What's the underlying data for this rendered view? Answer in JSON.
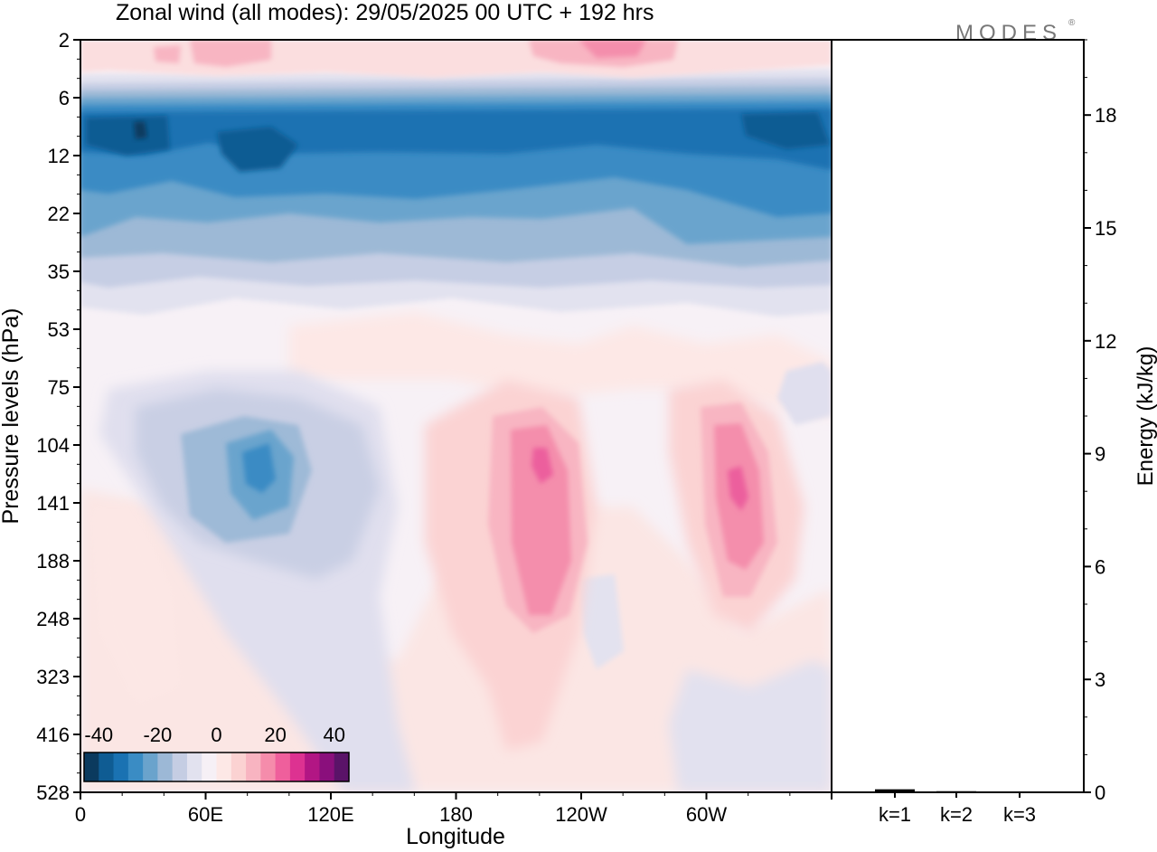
{
  "header": {
    "title": "Zonal wind (all modes):  29/05/2025  00 UTC  + 192 hrs",
    "logo_text": "MODES"
  },
  "chart_data": [
    {
      "type": "heatmap",
      "title": "Zonal wind (all modes):  29/05/2025  00 UTC  + 192 hrs",
      "xlabel": "Longitude",
      "ylabel": "Pressure levels (hPa)",
      "x_ticks": [
        {
          "lon": 0,
          "label": "0"
        },
        {
          "lon": 60,
          "label": "60E"
        },
        {
          "lon": 120,
          "label": "120E"
        },
        {
          "lon": 180,
          "label": "180"
        },
        {
          "lon": 240,
          "label": "120W"
        },
        {
          "lon": 300,
          "label": "60W"
        }
      ],
      "xlim": [
        0,
        360
      ],
      "y_levels": [
        "2",
        "6",
        "12",
        "22",
        "35",
        "53",
        "75",
        "104",
        "141",
        "188",
        "248",
        "323",
        "416",
        "528"
      ],
      "y_scale": "pressure levels, equally spaced, 2 hPa at top",
      "colorbar": {
        "tick_labels": [
          "-40",
          "-20",
          "0",
          "20",
          "40"
        ],
        "tick_values": [
          -40,
          -20,
          0,
          20,
          40
        ],
        "bins": [
          -45,
          -40,
          -35,
          -30,
          -25,
          -20,
          -15,
          -10,
          -5,
          0,
          5,
          10,
          15,
          20,
          25,
          30,
          35,
          40,
          45
        ],
        "colors": [
          "#0b3a5e",
          "#0f5c93",
          "#1a72b2",
          "#3a8cc4",
          "#6aa3cc",
          "#9cb8d6",
          "#c5cde3",
          "#e2e2ef",
          "#f6f0f6",
          "#fde8e6",
          "#fbd2d2",
          "#f8b4c1",
          "#f58cab",
          "#ef5f9c",
          "#dd3291",
          "#b21684",
          "#8a0f7c",
          "#5a1368"
        ],
        "placement": "bottom-left inside plot"
      },
      "features": [
        {
          "lon_range": [
            0,
            360
          ],
          "levels": [
            "6",
            "22"
          ],
          "value": -30
        },
        {
          "lon_range": [
            70,
            95
          ],
          "levels": [
            "104",
            "141"
          ],
          "value": -22
        },
        {
          "lon_range": [
            200,
            215
          ],
          "levels": [
            "104",
            "188"
          ],
          "value": 22
        },
        {
          "lon_range": [
            295,
            310
          ],
          "levels": [
            "104",
            "188"
          ],
          "value": 22
        },
        {
          "lon_range": [
            50,
            70
          ],
          "levels": [
            "2",
            "2"
          ],
          "value": 12
        },
        {
          "lon_range": [
            225,
            265
          ],
          "levels": [
            "2",
            "2"
          ],
          "value": 12
        }
      ]
    },
    {
      "type": "bar",
      "categories": [
        "k=1",
        "k=2",
        "k=3"
      ],
      "values": [
        0.08,
        0.03,
        0.02
      ],
      "ylabel": "Energy (kJ/kg)",
      "ylim": [
        0,
        20
      ],
      "y_ticks": [
        0,
        3,
        6,
        9,
        12,
        15,
        18
      ]
    }
  ]
}
